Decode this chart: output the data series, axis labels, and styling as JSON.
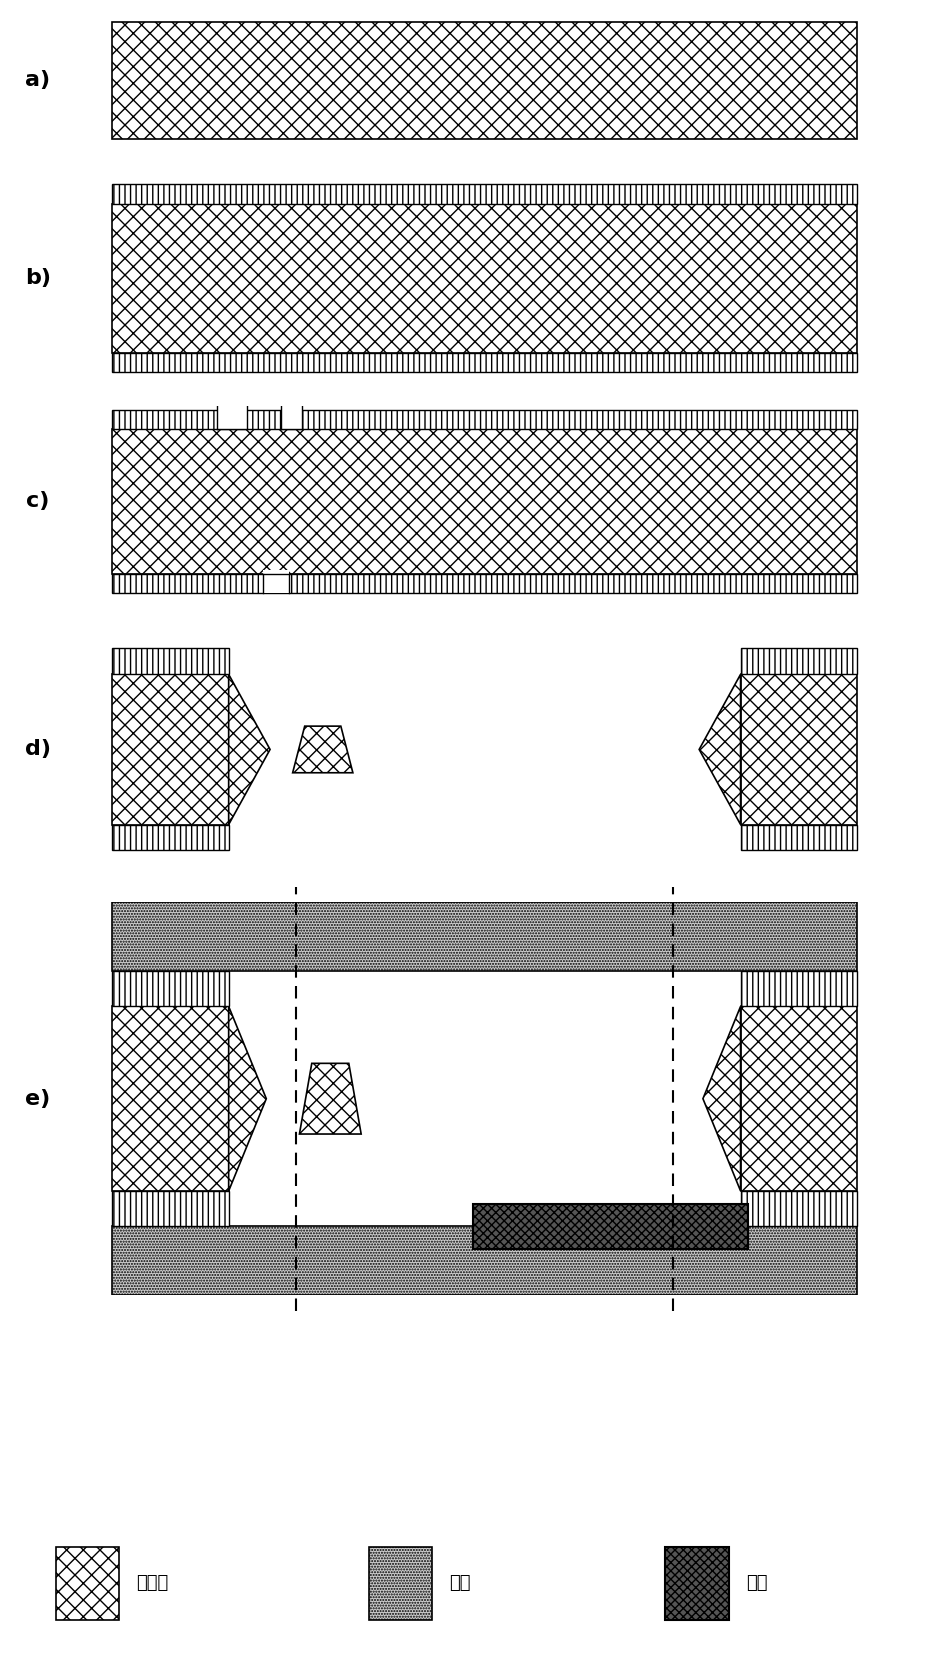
{
  "fig_width": 9.41,
  "fig_height": 16.71,
  "silicon_hatch": "xx",
  "thin_film_hatch": "|||",
  "glass_hatch": "......",
  "platinum_hatch": "xxxx",
  "silicon_fc": "#ffffff",
  "glass_fc": "#cccccc",
  "platinum_fc": "#555555",
  "thin_fc": "#ffffff",
  "legend_labels": [
    "单晶硅",
    "玻璃",
    "铂金"
  ],
  "panel_labels": [
    "a)",
    "b)",
    "c)",
    "d)",
    "e)"
  ]
}
